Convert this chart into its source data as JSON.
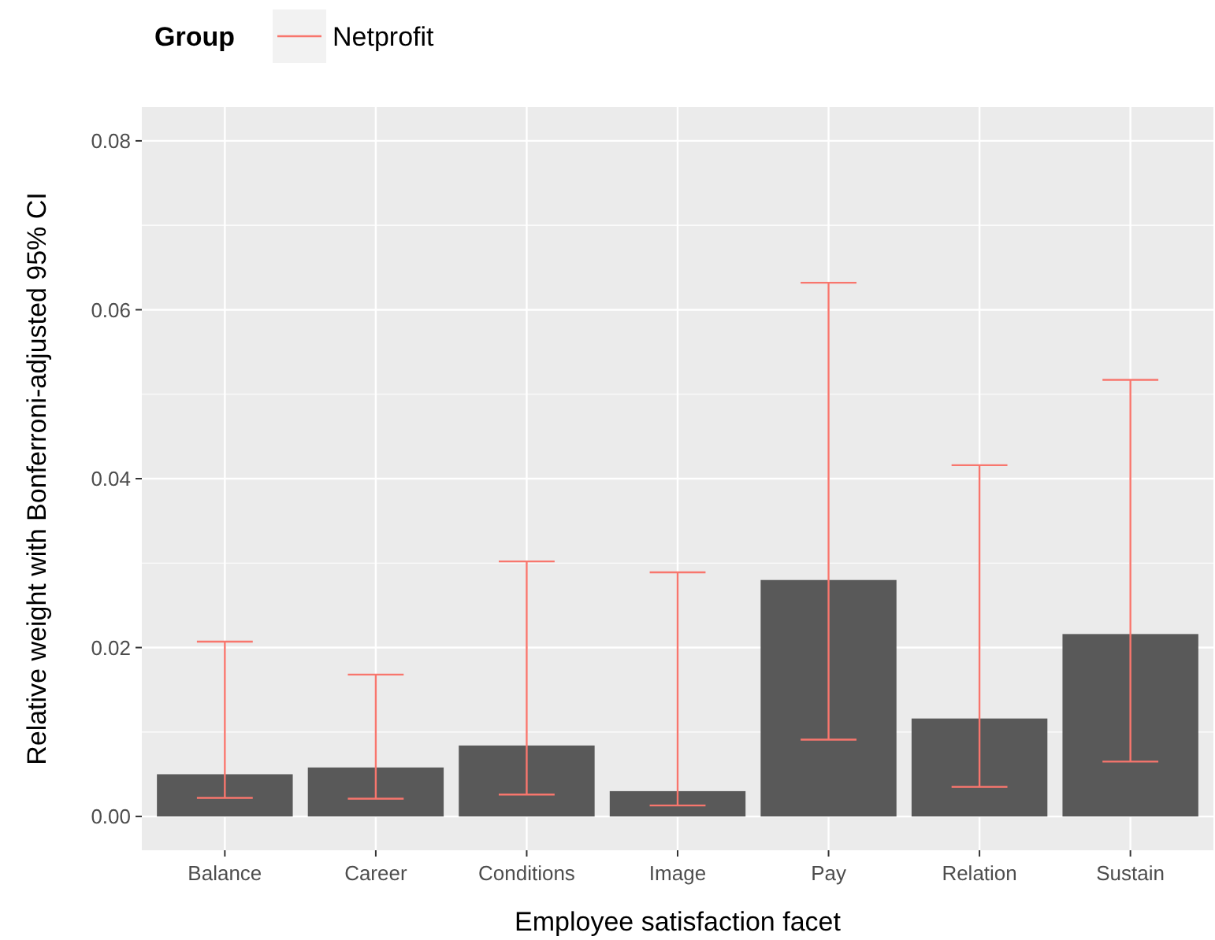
{
  "chart_data": {
    "type": "bar",
    "xlabel": "Employee satisfaction facet",
    "ylabel": "Relative weight with Bonferroni-adjusted 95% CI",
    "legend_title": "Group",
    "categories": [
      "Balance",
      "Career",
      "Conditions",
      "Image",
      "Pay",
      "Relation",
      "Sustain"
    ],
    "color": "#f8766d",
    "series": [
      {
        "name": "Netprofit",
        "color": "#595959",
        "values": [
          0.005,
          0.0058,
          0.0084,
          0.003,
          0.028,
          0.0116,
          0.0216
        ],
        "errors": [
          [
            0.0022,
            0.0207
          ],
          [
            0.0021,
            0.0168
          ],
          [
            0.0026,
            0.0302
          ],
          [
            0.0013,
            0.0289
          ],
          [
            0.0091,
            0.0632
          ],
          [
            0.0035,
            0.0416
          ],
          [
            0.0065,
            0.0517
          ]
        ]
      }
    ],
    "ylim": [
      -0.004,
      0.084
    ],
    "yticks": [
      {
        "value": 0,
        "label": "0.00"
      },
      {
        "value": 0.02,
        "label": "0.02"
      },
      {
        "value": 0.04,
        "label": "0.04"
      },
      {
        "value": 0.06,
        "label": "0.06"
      },
      {
        "value": 0.08,
        "label": "0.08"
      }
    ],
    "grid": true,
    "legend": "top left"
  }
}
